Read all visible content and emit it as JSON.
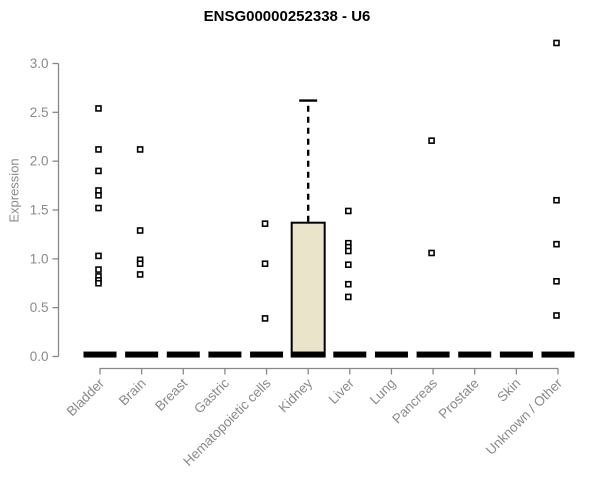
{
  "chart_data": {
    "type": "boxplot",
    "title": "ENSG00000252338 - U6",
    "ylabel": "Expression",
    "xlabel": "",
    "ylim": [
      0,
      3.2
    ],
    "yticks": [
      {
        "value": 0.0,
        "label": "0.0"
      },
      {
        "value": 0.5,
        "label": "0.5"
      },
      {
        "value": 1.0,
        "label": "1.0"
      },
      {
        "value": 1.5,
        "label": "1.5"
      },
      {
        "value": 2.0,
        "label": "2.0"
      },
      {
        "value": 2.5,
        "label": "2.5"
      },
      {
        "value": 3.0,
        "label": "3.0"
      }
    ],
    "categories": [
      "Bladder",
      "Brain",
      "Breast",
      "Gastric",
      "Hematopoietic cells",
      "Kidney",
      "Liver",
      "Lung",
      "Pancreas",
      "Prostate",
      "Skin",
      "Unknown / Other"
    ],
    "series": [
      {
        "label": "Bladder",
        "q1": 0.0,
        "median": 0.02,
        "q3": 0.03,
        "whisker_low": 0.0,
        "whisker_high": 0.03,
        "outliers": [
          2.54,
          2.12,
          1.9,
          1.7,
          1.65,
          1.52,
          1.03,
          0.89,
          0.82,
          0.78,
          0.75
        ]
      },
      {
        "label": "Brain",
        "q1": 0.0,
        "median": 0.02,
        "q3": 0.03,
        "whisker_low": 0.0,
        "whisker_high": 0.03,
        "outliers": [
          2.12,
          1.29,
          0.99,
          0.95,
          0.84
        ]
      },
      {
        "label": "Breast",
        "q1": 0.0,
        "median": 0.02,
        "q3": 0.03,
        "whisker_low": 0.0,
        "whisker_high": 0.03,
        "outliers": []
      },
      {
        "label": "Gastric",
        "q1": 0.0,
        "median": 0.02,
        "q3": 0.03,
        "whisker_low": 0.0,
        "whisker_high": 0.03,
        "outliers": []
      },
      {
        "label": "Hematopoietic cells",
        "q1": 0.0,
        "median": 0.02,
        "q3": 0.03,
        "whisker_low": 0.0,
        "whisker_high": 0.03,
        "outliers": [
          1.36,
          0.95,
          0.39
        ]
      },
      {
        "label": "Kidney",
        "q1": 0.0,
        "median": 0.02,
        "q3": 1.37,
        "whisker_low": 0.0,
        "whisker_high": 2.62,
        "outliers": []
      },
      {
        "label": "Liver",
        "q1": 0.0,
        "median": 0.02,
        "q3": 0.03,
        "whisker_low": 0.0,
        "whisker_high": 0.03,
        "outliers": [
          1.49,
          1.16,
          1.12,
          1.08,
          0.94,
          0.74,
          0.61
        ]
      },
      {
        "label": "Lung",
        "q1": 0.0,
        "median": 0.02,
        "q3": 0.03,
        "whisker_low": 0.0,
        "whisker_high": 0.03,
        "outliers": []
      },
      {
        "label": "Pancreas",
        "q1": 0.0,
        "median": 0.02,
        "q3": 0.03,
        "whisker_low": 0.0,
        "whisker_high": 0.03,
        "outliers": [
          2.21,
          1.06
        ]
      },
      {
        "label": "Prostate",
        "q1": 0.0,
        "median": 0.02,
        "q3": 0.03,
        "whisker_low": 0.0,
        "whisker_high": 0.03,
        "outliers": []
      },
      {
        "label": "Skin",
        "q1": 0.0,
        "median": 0.02,
        "q3": 0.03,
        "whisker_low": 0.0,
        "whisker_high": 0.03,
        "outliers": []
      },
      {
        "label": "Unknown / Other",
        "q1": 0.0,
        "median": 0.02,
        "q3": 0.03,
        "whisker_low": 0.0,
        "whisker_high": 0.03,
        "outliers": [
          3.21,
          1.6,
          1.15,
          0.77,
          0.42
        ]
      }
    ],
    "layout_hints": {
      "grid": false,
      "legend": null,
      "x_labels_rotation_deg": 45
    },
    "colors": {
      "background": "#ffffff",
      "box_fill": "#EAE5CA",
      "box_border": "#000000",
      "median": "#000000",
      "whisker": "#000000",
      "outlier_stroke": "#000000",
      "outlier_fill": "#ffffff",
      "axis_line": "#888888",
      "tick_text": "#8a8a8a",
      "title_text": "#000000"
    }
  }
}
